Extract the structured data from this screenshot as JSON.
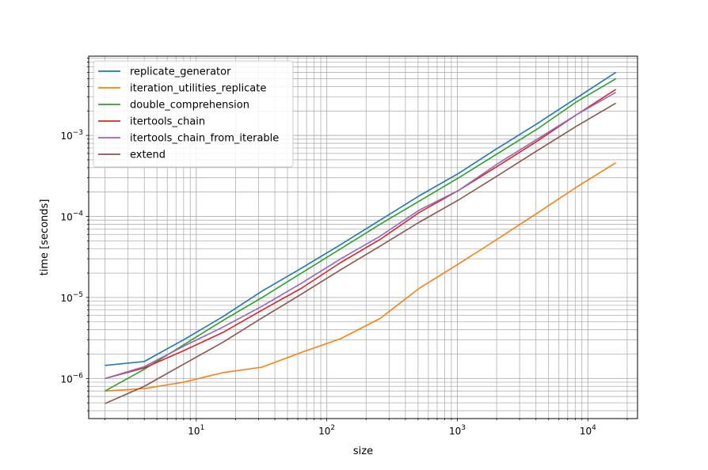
{
  "chart_data": {
    "type": "line",
    "title": "",
    "xlabel": "size",
    "ylabel": "time [seconds]",
    "xscale": "log",
    "yscale": "log",
    "xlim": [
      1.5,
      24000
    ],
    "ylim": [
      3.2e-07,
      0.0095
    ],
    "grid": "major and minor",
    "legend_position": "top-left",
    "x_ticks": [
      {
        "value": 10,
        "base": "10",
        "exp": "1"
      },
      {
        "value": 100,
        "base": "10",
        "exp": "2"
      },
      {
        "value": 1000,
        "base": "10",
        "exp": "3"
      },
      {
        "value": 10000,
        "base": "10",
        "exp": "4"
      }
    ],
    "y_ticks": [
      {
        "value": 1e-06,
        "base": "10",
        "exp": "−6"
      },
      {
        "value": 1e-05,
        "base": "10",
        "exp": "−5"
      },
      {
        "value": 0.0001,
        "base": "10",
        "exp": "−4"
      },
      {
        "value": 0.001,
        "base": "10",
        "exp": "−3"
      }
    ],
    "x": [
      2,
      4,
      8,
      16,
      32,
      64,
      128,
      256,
      512,
      1024,
      2048,
      4096,
      8192,
      16384
    ],
    "series": [
      {
        "name": "replicate_generator",
        "color": "#1f77b4",
        "values": [
          1.45e-06,
          1.62e-06,
          3e-06,
          5.8e-06,
          1.2e-05,
          2.3e-05,
          4.5e-05,
          9e-05,
          0.00018,
          0.00034,
          0.0007,
          0.0014,
          0.0029,
          0.006
        ]
      },
      {
        "name": "iteration_utilities_replicate",
        "color": "#ff7f0e",
        "values": [
          7e-07,
          7.5e-07,
          9e-07,
          1.18e-06,
          1.38e-06,
          2.1e-06,
          3.1e-06,
          5.5e-06,
          1.3e-05,
          2.6e-05,
          5.3e-05,
          0.00011,
          0.00023,
          0.00046
        ]
      },
      {
        "name": "double_comprehension",
        "color": "#2ca02c",
        "values": [
          7e-07,
          1.3e-06,
          2.6e-06,
          5.2e-06,
          1e-05,
          2e-05,
          4e-05,
          8e-05,
          0.000155,
          0.0003,
          0.0006,
          0.0012,
          0.0026,
          0.005
        ]
      },
      {
        "name": "itertools_chain",
        "color": "#d62728",
        "values": [
          1e-06,
          1.35e-06,
          2.2e-06,
          3.7e-06,
          7e-06,
          1.3e-05,
          2.7e-05,
          5.2e-05,
          0.000112,
          0.00021,
          0.00042,
          0.00085,
          0.0018,
          0.0037
        ]
      },
      {
        "name": "itertools_chain_from_iterable",
        "color": "#9467bd",
        "values": [
          1e-06,
          1.4e-06,
          2.5e-06,
          4.3e-06,
          7.8e-06,
          1.5e-05,
          3e-05,
          5.7e-05,
          0.00012,
          0.00021,
          0.00045,
          0.0009,
          0.0018,
          0.0034
        ]
      },
      {
        "name": "extend",
        "color": "#8c564b",
        "values": [
          4.9e-07,
          8e-07,
          1.5e-06,
          2.8e-06,
          5.6e-06,
          1.1e-05,
          2.2e-05,
          4.3e-05,
          8.5e-05,
          0.00016,
          0.00032,
          0.00065,
          0.0013,
          0.0025
        ]
      }
    ]
  }
}
